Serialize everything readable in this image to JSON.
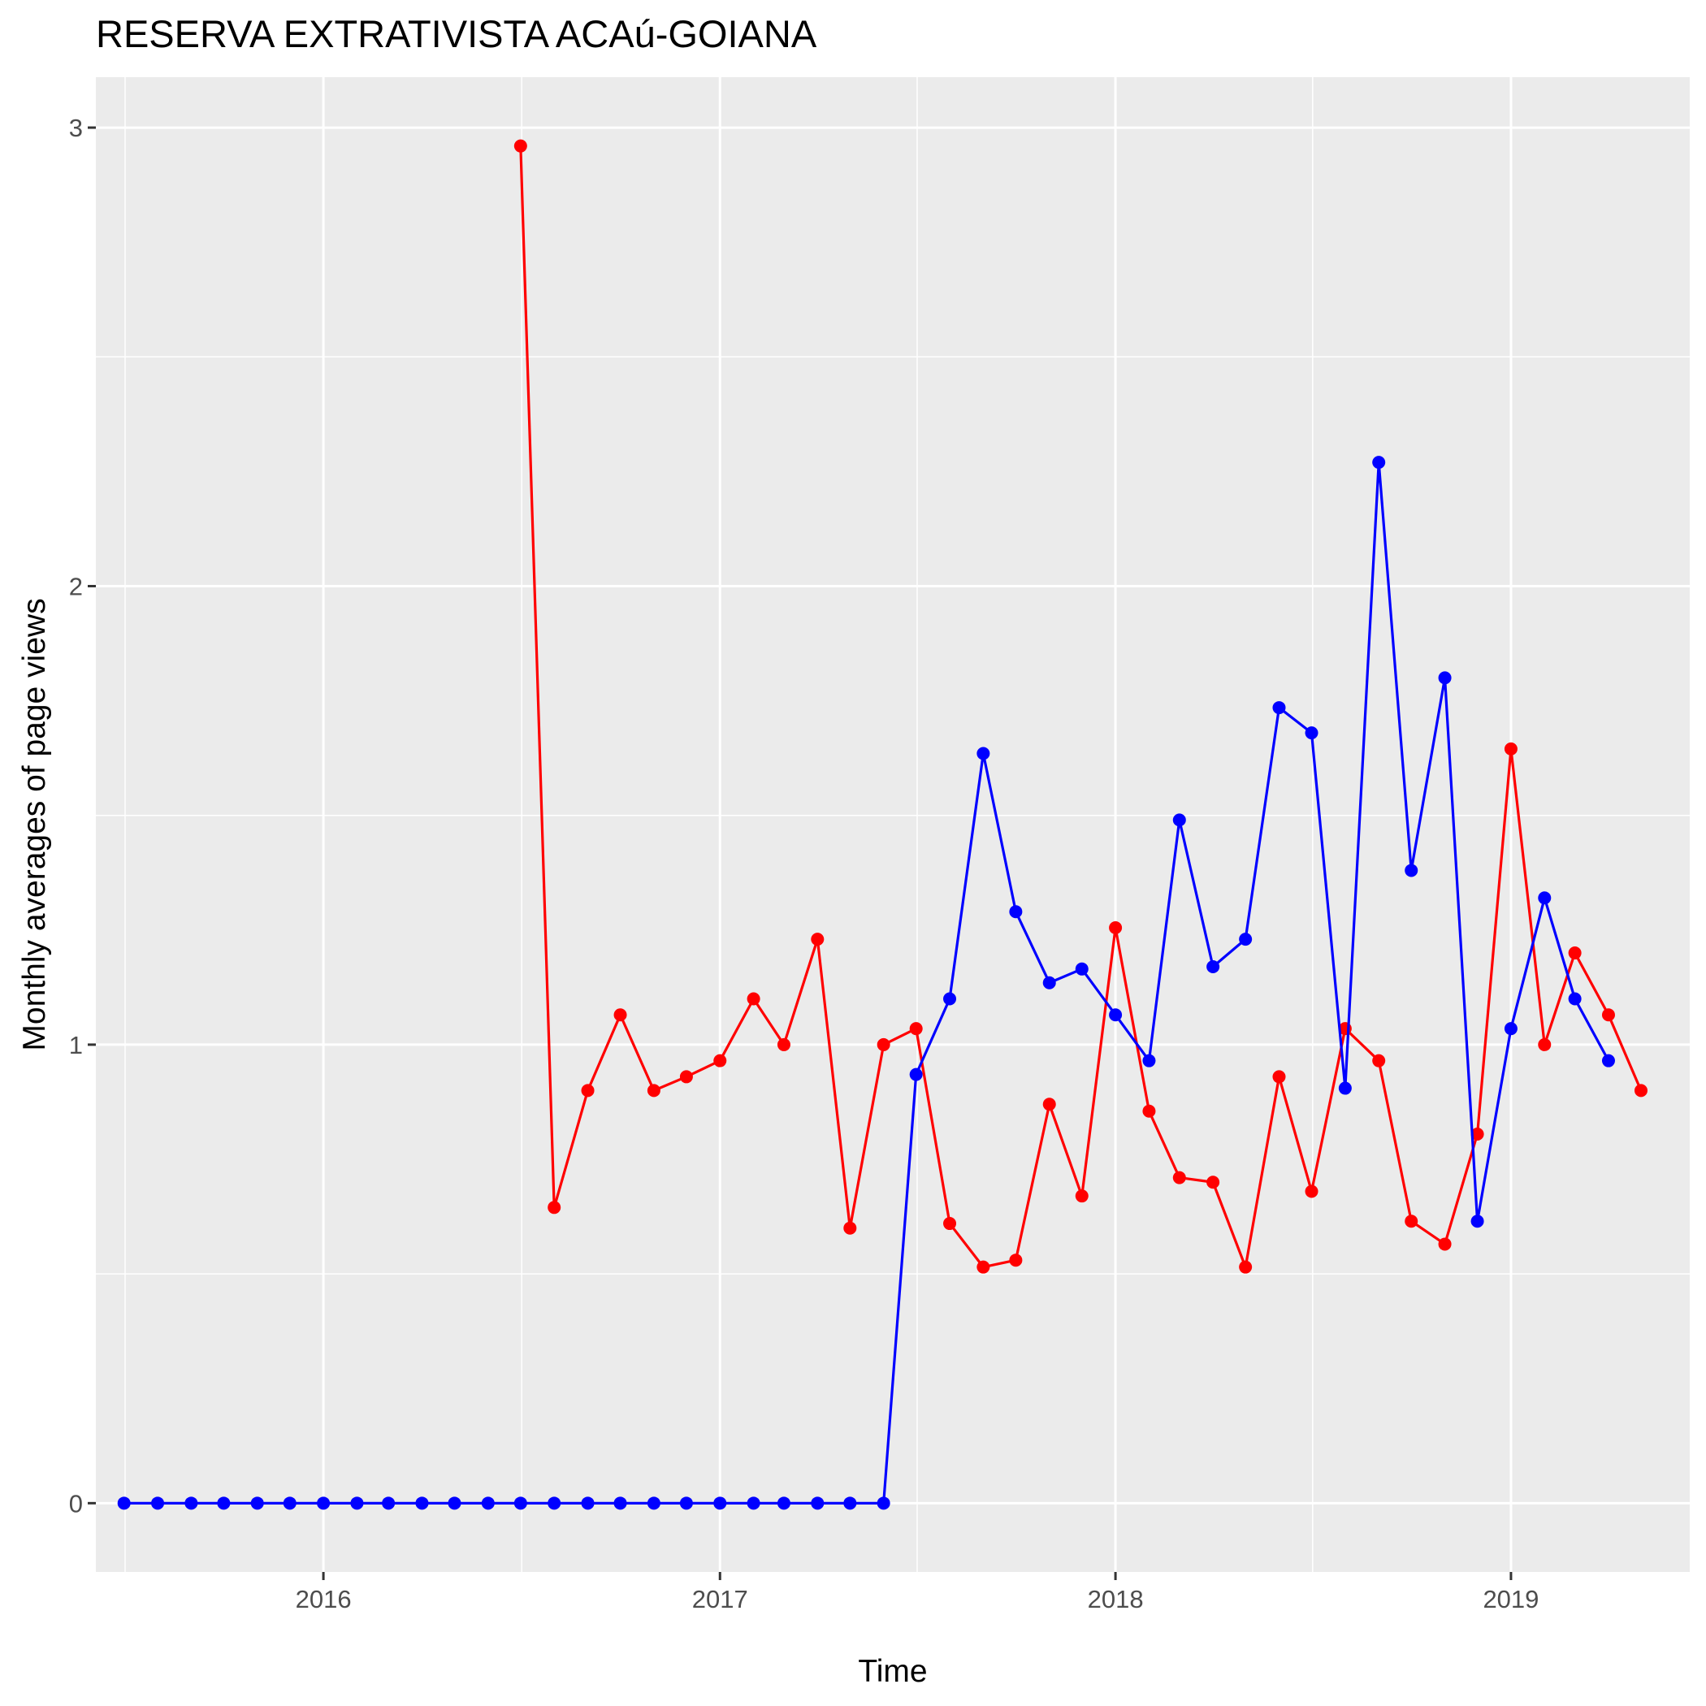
{
  "chart_data": {
    "type": "line",
    "title": "RESERVA EXTRATIVISTA ACAú-GOIANA",
    "xlabel": "Time",
    "ylabel": "Monthly averages of page views",
    "xlim": [
      "2015-06-05",
      "2019-06-15"
    ],
    "ylim": [
      -0.15,
      3.11
    ],
    "x_ticks": [
      "2016",
      "2017",
      "2018",
      "2019"
    ],
    "y_ticks": [
      "0",
      "1",
      "2",
      "3"
    ],
    "grid": true,
    "legend": "none",
    "series": [
      {
        "color": "#ff0000",
        "x": [
          "2016-07-01",
          "2016-08-01",
          "2016-09-01",
          "2016-10-01",
          "2016-11-01",
          "2016-12-01",
          "2017-01-01",
          "2017-02-01",
          "2017-03-01",
          "2017-04-01",
          "2017-05-01",
          "2017-06-01",
          "2017-07-01",
          "2017-08-01",
          "2017-09-01",
          "2017-10-01",
          "2017-11-01",
          "2017-12-01",
          "2018-01-01",
          "2018-02-01",
          "2018-03-01",
          "2018-04-01",
          "2018-05-01",
          "2018-06-01",
          "2018-07-01",
          "2018-08-01",
          "2018-09-01",
          "2018-10-01",
          "2018-11-01",
          "2018-12-01",
          "2019-01-01",
          "2019-02-01",
          "2019-03-01",
          "2019-04-01",
          "2019-05-01"
        ],
        "values": [
          2.96,
          0.645,
          0.9,
          1.065,
          0.9,
          0.93,
          0.965,
          1.1,
          1.0,
          1.23,
          0.6,
          1.0,
          1.035,
          0.61,
          0.515,
          0.53,
          0.87,
          0.67,
          1.255,
          0.855,
          0.71,
          0.7,
          0.515,
          0.93,
          0.68,
          1.035,
          0.965,
          0.615,
          0.565,
          0.805,
          1.645,
          1.0,
          1.2,
          1.065,
          0.9
        ]
      },
      {
        "color": "#0000ff",
        "x": [
          "2015-07-01",
          "2015-08-01",
          "2015-09-01",
          "2015-10-01",
          "2015-11-01",
          "2015-12-01",
          "2016-01-01",
          "2016-02-01",
          "2016-03-01",
          "2016-04-01",
          "2016-05-01",
          "2016-06-01",
          "2016-07-01",
          "2016-08-01",
          "2016-09-01",
          "2016-10-01",
          "2016-11-01",
          "2016-12-01",
          "2017-01-01",
          "2017-02-01",
          "2017-03-01",
          "2017-04-01",
          "2017-05-01",
          "2017-06-01",
          "2017-07-01",
          "2017-08-01",
          "2017-09-01",
          "2017-10-01",
          "2017-11-01",
          "2017-12-01",
          "2018-01-01",
          "2018-02-01",
          "2018-03-01",
          "2018-04-01",
          "2018-05-01",
          "2018-06-01",
          "2018-07-01",
          "2018-08-01",
          "2018-09-01",
          "2018-10-01",
          "2018-11-01",
          "2018-12-01",
          "2019-01-01",
          "2019-02-01",
          "2019-03-01",
          "2019-04-01"
        ],
        "values": [
          0,
          0,
          0,
          0,
          0,
          0,
          0,
          0,
          0,
          0,
          0,
          0,
          0,
          0,
          0,
          0,
          0,
          0,
          0,
          0,
          0,
          0,
          0,
          0,
          0.935,
          1.1,
          1.635,
          1.29,
          1.135,
          1.165,
          1.065,
          0.965,
          1.49,
          1.17,
          1.23,
          1.735,
          1.68,
          0.905,
          2.27,
          1.38,
          1.8,
          0.615,
          1.035,
          1.32,
          1.1,
          0.965
        ]
      }
    ]
  }
}
